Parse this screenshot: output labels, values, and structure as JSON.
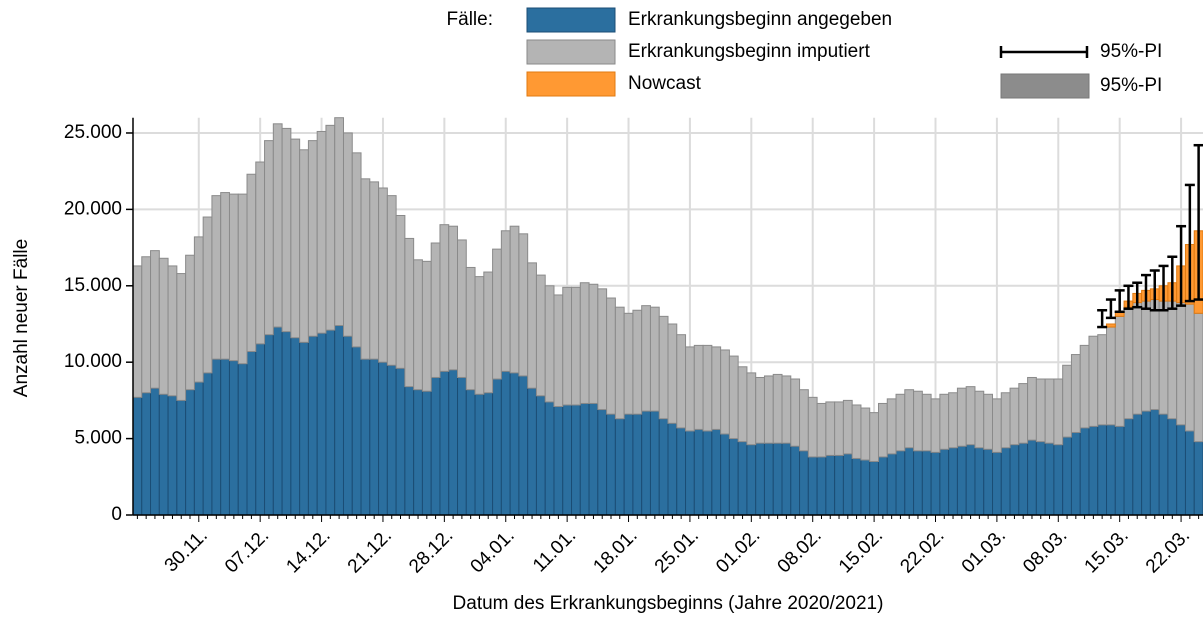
{
  "chart_data": {
    "type": "stacked_bar",
    "legend_title": "Fälle:",
    "y_label": "Anzahl neuer Fälle",
    "x_label": "Datum des Erkrankungsbeginns (Jahre 2020/2021)",
    "ylim": [
      0,
      26000
    ],
    "yticks": [
      0,
      {
        "value": 5000,
        "label": "5.000"
      },
      {
        "value": 10000,
        "label": "10.000"
      },
      {
        "value": 15000,
        "label": "15.000"
      },
      {
        "value": 20000,
        "label": "20.000"
      },
      {
        "value": 25000,
        "label": "25.000"
      }
    ],
    "grid": true,
    "categories": [
      null,
      null,
      null,
      null,
      null,
      null,
      null,
      "30.11.",
      null,
      null,
      null,
      null,
      null,
      null,
      "07.12.",
      null,
      null,
      null,
      null,
      null,
      null,
      "14.12.",
      null,
      null,
      null,
      null,
      null,
      null,
      "21.12.",
      null,
      null,
      null,
      null,
      null,
      null,
      "28.12.",
      null,
      null,
      null,
      null,
      null,
      null,
      "04.01.",
      null,
      null,
      null,
      null,
      null,
      null,
      "11.01.",
      null,
      null,
      null,
      null,
      null,
      null,
      "18.01.",
      null,
      null,
      null,
      null,
      null,
      null,
      "25.01.",
      null,
      null,
      null,
      null,
      null,
      null,
      "01.02.",
      null,
      null,
      null,
      null,
      null,
      null,
      "08.02.",
      null,
      null,
      null,
      null,
      null,
      null,
      "15.02.",
      null,
      null,
      null,
      null,
      null,
      null,
      "22.02.",
      null,
      null,
      null,
      null,
      null,
      null,
      "01.03.",
      null,
      null,
      null,
      null,
      null,
      null,
      "08.03.",
      null,
      null,
      null,
      null,
      null,
      null,
      "15.03.",
      null,
      null,
      null,
      null,
      null,
      null,
      "22.03.",
      null,
      null
    ],
    "series": [
      {
        "name": "Erkrankungsbeginn angegeben",
        "color": "#2b6f9f",
        "edge": "#1b4d75",
        "values": [
          7700,
          8000,
          8300,
          7900,
          7800,
          7500,
          8200,
          8700,
          9300,
          10200,
          10200,
          10100,
          9900,
          10700,
          11200,
          11800,
          12300,
          12000,
          11600,
          11300,
          11700,
          11900,
          12100,
          12400,
          11700,
          11000,
          10200,
          10200,
          10000,
          9800,
          9600,
          8400,
          8200,
          8100,
          9000,
          9400,
          9500,
          9000,
          8200,
          7900,
          8000,
          8900,
          9400,
          9300,
          9100,
          8300,
          7800,
          7400,
          7100,
          7200,
          7200,
          7300,
          7300,
          6900,
          6600,
          6300,
          6600,
          6600,
          6800,
          6800,
          6300,
          6000,
          5700,
          5500,
          5600,
          5500,
          5600,
          5300,
          5000,
          4800,
          4600,
          4700,
          4700,
          4700,
          4700,
          4500,
          4200,
          3800,
          3800,
          3900,
          3900,
          4000,
          3700,
          3600,
          3500,
          3800,
          4000,
          4200,
          4400,
          4200,
          4200,
          4100,
          4300,
          4400,
          4500,
          4600,
          4400,
          4300,
          4100,
          4400,
          4600,
          4700,
          4900,
          4800,
          4700,
          4600,
          5100,
          5400,
          5700,
          5800,
          5900,
          5900,
          5800,
          6300,
          6600,
          6800,
          6900,
          6600,
          6300,
          5900,
          5500,
          4800
        ]
      },
      {
        "name": "Erkrankungsbeginn imputiert",
        "color": "#b4b4b4",
        "edge": "#8a8a8a",
        "values": [
          8600,
          8900,
          9000,
          8900,
          8500,
          8300,
          8800,
          9500,
          10200,
          10700,
          10900,
          10900,
          11100,
          11600,
          11900,
          12700,
          13300,
          13300,
          13000,
          12600,
          12800,
          13200,
          13400,
          13600,
          13300,
          12700,
          11800,
          11600,
          11400,
          11100,
          10000,
          9700,
          8500,
          8500,
          8800,
          9600,
          9400,
          9000,
          8000,
          7700,
          7900,
          8500,
          9200,
          9600,
          9300,
          8200,
          7900,
          7600,
          7300,
          7700,
          7700,
          7900,
          7800,
          7900,
          7600,
          7300,
          6600,
          6800,
          6900,
          6800,
          6700,
          6500,
          6100,
          5500,
          5500,
          5600,
          5400,
          5500,
          5400,
          4900,
          4700,
          4300,
          4400,
          4500,
          4400,
          4400,
          4000,
          3900,
          3500,
          3500,
          3500,
          3500,
          3500,
          3400,
          3200,
          3500,
          3600,
          3700,
          3800,
          3900,
          3700,
          3500,
          3600,
          3600,
          3800,
          3800,
          3700,
          3600,
          3500,
          3600,
          3700,
          3900,
          4100,
          4100,
          4200,
          4300,
          4700,
          5100,
          5400,
          5900,
          5900,
          6400,
          7200,
          7300,
          7300,
          7200,
          7200,
          7400,
          7700,
          8000,
          8300,
          8400
        ]
      },
      {
        "name": "Nowcast",
        "color": "#ff9933",
        "edge": "#e07a10",
        "values": [
          null,
          null,
          null,
          null,
          null,
          null,
          null,
          null,
          null,
          null,
          null,
          null,
          null,
          null,
          null,
          null,
          null,
          null,
          null,
          null,
          null,
          null,
          null,
          null,
          null,
          null,
          null,
          null,
          null,
          null,
          null,
          null,
          null,
          null,
          null,
          null,
          null,
          null,
          null,
          null,
          null,
          null,
          null,
          null,
          null,
          null,
          null,
          null,
          null,
          null,
          null,
          null,
          null,
          null,
          null,
          null,
          null,
          null,
          null,
          null,
          null,
          null,
          null,
          null,
          null,
          null,
          null,
          null,
          null,
          null,
          null,
          null,
          null,
          null,
          null,
          null,
          null,
          null,
          null,
          null,
          null,
          null,
          null,
          null,
          null,
          null,
          null,
          null,
          null,
          null,
          null,
          null,
          null,
          null,
          null,
          null,
          null,
          null,
          null,
          null,
          null,
          null,
          null,
          null,
          null,
          null,
          null,
          null,
          null,
          null,
          0,
          200,
          300,
          400,
          600,
          700,
          700,
          1000,
          1200,
          2400,
          3900,
          5400
        ]
      }
    ],
    "interval": {
      "name": "95%-PI",
      "color": "#000000",
      "lower": [
        null,
        null,
        null,
        null,
        null,
        null,
        null,
        null,
        null,
        null,
        null,
        null,
        null,
        null,
        null,
        null,
        null,
        null,
        null,
        null,
        null,
        null,
        null,
        null,
        null,
        null,
        null,
        null,
        null,
        null,
        null,
        null,
        null,
        null,
        null,
        null,
        null,
        null,
        null,
        null,
        null,
        null,
        null,
        null,
        null,
        null,
        null,
        null,
        null,
        null,
        null,
        null,
        null,
        null,
        null,
        null,
        null,
        null,
        null,
        null,
        null,
        null,
        null,
        null,
        null,
        null,
        null,
        null,
        null,
        null,
        null,
        null,
        null,
        null,
        null,
        null,
        null,
        null,
        null,
        null,
        null,
        null,
        null,
        null,
        null,
        null,
        null,
        null,
        null,
        null,
        null,
        null,
        null,
        null,
        null,
        null,
        null,
        null,
        null,
        null,
        null,
        null,
        null,
        null,
        null,
        null,
        null,
        null,
        null,
        null,
        12300,
        12900,
        13300,
        13500,
        13600,
        13500,
        13400,
        13400,
        13500,
        13700,
        14000,
        14100
      ],
      "upper": [
        null,
        null,
        null,
        null,
        null,
        null,
        null,
        null,
        null,
        null,
        null,
        null,
        null,
        null,
        null,
        null,
        null,
        null,
        null,
        null,
        null,
        null,
        null,
        null,
        null,
        null,
        null,
        null,
        null,
        null,
        null,
        null,
        null,
        null,
        null,
        null,
        null,
        null,
        null,
        null,
        null,
        null,
        null,
        null,
        null,
        null,
        null,
        null,
        null,
        null,
        null,
        null,
        null,
        null,
        null,
        null,
        null,
        null,
        null,
        null,
        null,
        null,
        null,
        null,
        null,
        null,
        null,
        null,
        null,
        null,
        null,
        null,
        null,
        null,
        null,
        null,
        null,
        null,
        null,
        null,
        null,
        null,
        null,
        null,
        null,
        null,
        null,
        null,
        null,
        null,
        null,
        null,
        null,
        null,
        null,
        null,
        null,
        null,
        null,
        null,
        null,
        null,
        null,
        null,
        null,
        null,
        null,
        null,
        null,
        null,
        13400,
        14100,
        14700,
        15000,
        15200,
        15700,
        16000,
        16300,
        16900,
        18900,
        21600,
        24200
      ]
    },
    "band_legend": {
      "name": "95%-PI",
      "color": "#8c8c8c"
    }
  }
}
